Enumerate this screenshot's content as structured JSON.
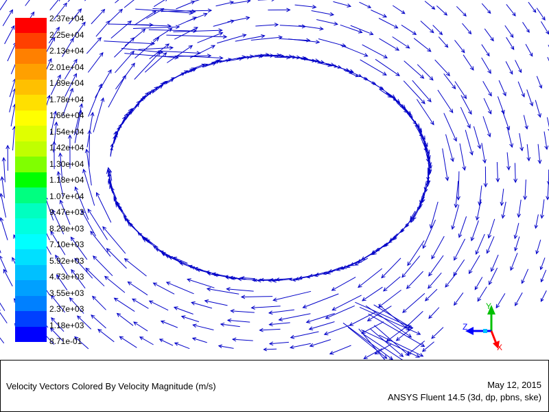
{
  "caption": {
    "title": "Velocity Vectors Colored By Velocity Magnitude (m/s)",
    "date": "May 12, 2015",
    "software": "ANSYS Fluent 14.5 (3d, dp, pbns, ske)"
  },
  "colorbar": {
    "labels": [
      "2.37e+04",
      "2.25e+04",
      "2.13e+04",
      "2.01e+04",
      "1.89e+04",
      "1.78e+04",
      "1.66e+04",
      "1.54e+04",
      "1.42e+04",
      "1.30e+04",
      "1.18e+04",
      "1.07e+04",
      "9.47e+03",
      "8.28e+03",
      "7.10e+03",
      "5.92e+03",
      "4.73e+03",
      "3.55e+03",
      "2.37e+03",
      "1.18e+03",
      "8.71e-01"
    ],
    "colors": [
      "#ff0000",
      "#ff4000",
      "#ff8000",
      "#ffa000",
      "#ffc000",
      "#ffe000",
      "#ffff00",
      "#e0ff00",
      "#c0ff00",
      "#80ff00",
      "#00ff00",
      "#00ff80",
      "#00ffc0",
      "#00ffe0",
      "#00ffff",
      "#00e0ff",
      "#00c0ff",
      "#00a0ff",
      "#0080ff",
      "#0040ff",
      "#0000ff"
    ]
  },
  "axes_triad": {
    "y_label": "Y",
    "z_label": "Z",
    "x_label": "X",
    "y_color": "#00c000",
    "z_color": "#0000ff",
    "x_color": "#ff0000"
  },
  "chart_data": {
    "type": "vector-field",
    "colored_by": "Velocity Magnitude (m/s)",
    "color_range": [
      0.871,
      23700
    ],
    "vector_color": "#0000c8",
    "legend_placement": "left"
  }
}
